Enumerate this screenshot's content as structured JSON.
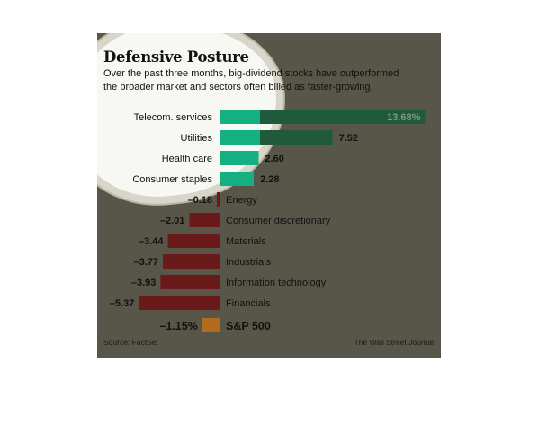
{
  "title": "Defensive Posture",
  "subtitle": [
    "Over the past three months, big-dividend stocks have outperformed",
    "the broader market and sectors often billed as faster-growing."
  ],
  "source": "Source: FactSet",
  "credit": "The Wall Street Journal",
  "colors": {
    "positive": "#1f5a3c",
    "positive_highlight": "#13b98a",
    "negative": "#6b1a1a",
    "benchmark": "#b36b1e",
    "background": "#575648"
  },
  "chart_data": {
    "type": "bar",
    "orientation": "horizontal",
    "unit": "%",
    "categories": [
      "Telecom. services",
      "Utilities",
      "Health care",
      "Consumer staples",
      "Energy",
      "Consumer discretionary",
      "Materials",
      "Industrials",
      "Information technology",
      "Financials"
    ],
    "values": [
      13.68,
      7.52,
      2.6,
      2.28,
      -0.18,
      -2.01,
      -3.44,
      -3.77,
      -3.93,
      -5.37
    ],
    "value_labels": [
      "13.68%",
      "7.52",
      "2.60",
      "2.28",
      "–0.18",
      "–2.01",
      "–3.44",
      "–3.77",
      "–3.93",
      "–5.37"
    ],
    "benchmark": {
      "label": "S&P 500",
      "value": -1.15,
      "value_label": "–1.15%"
    }
  }
}
